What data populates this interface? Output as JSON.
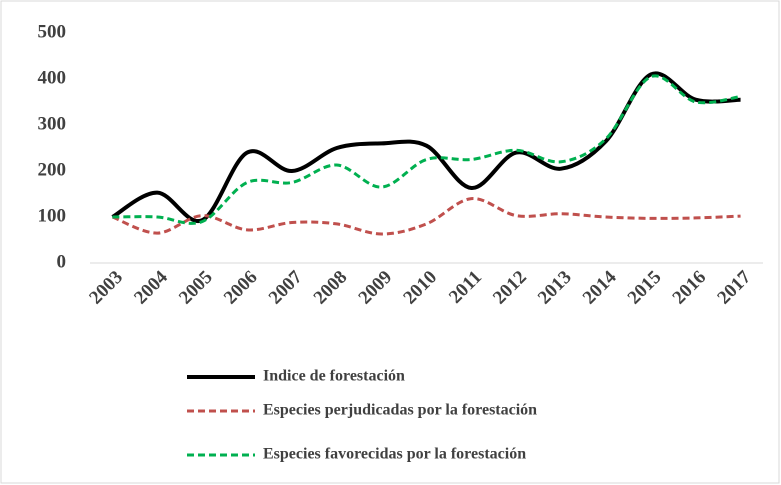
{
  "chart_data": {
    "type": "line",
    "categories": [
      "2003",
      "2004",
      "2005",
      "2006",
      "2007",
      "2008",
      "2009",
      "2010",
      "2011",
      "2012",
      "2013",
      "2014",
      "2015",
      "2016",
      "2017"
    ],
    "series": [
      {
        "name": "Indice de forestación",
        "color": "#000000",
        "dash": "solid",
        "values": [
          100,
          153,
          93,
          240,
          200,
          250,
          260,
          255,
          163,
          240,
          205,
          265,
          410,
          355,
          355
        ]
      },
      {
        "name": "Especies perjudicadas por la forestación",
        "color": "#c0504d",
        "dash": "dashed",
        "values": [
          100,
          65,
          103,
          72,
          88,
          85,
          63,
          85,
          140,
          103,
          107,
          100,
          97,
          98,
          102
        ]
      },
      {
        "name": "Especies favorecidas por la forestación",
        "color": "#00b050",
        "dash": "dashed",
        "values": [
          100,
          100,
          90,
          175,
          175,
          213,
          165,
          225,
          225,
          245,
          220,
          270,
          405,
          350,
          362
        ]
      }
    ],
    "ylim": [
      0,
      500
    ],
    "yticks": [
      0,
      100,
      200,
      300,
      400,
      500
    ],
    "grid": false,
    "smooth": true,
    "legend": "bottom"
  }
}
